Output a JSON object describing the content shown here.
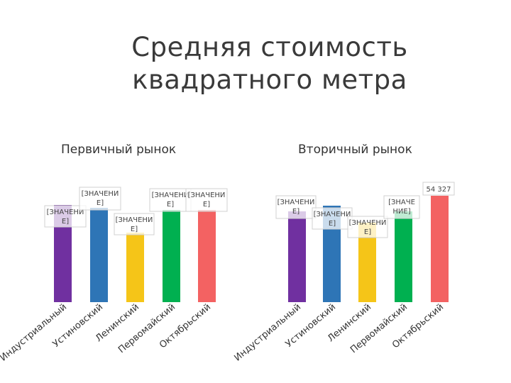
{
  "title_lines": [
    "Средняя стоимость",
    "квадратного метра"
  ],
  "charts": [
    {
      "subtitle": "Первичный рынок",
      "chart_data": {
        "type": "bar",
        "categories": [
          "Индустриальный",
          "Устиновский",
          "Ленинский",
          "Первомайский",
          "Октябрьский"
        ],
        "colors": [
          "#7030a0",
          "#2e75b6",
          "#f5c518",
          "#00b050",
          "#f36262"
        ],
        "values": [
          null,
          null,
          null,
          null,
          null
        ],
        "data_labels": [
          "[ЗНАЧЕНИ\nЕ]",
          "[ЗНАЧЕНИ\nЕ]",
          "[ЗНАЧЕНИ\nЕ]",
          "[ЗНАЧЕНИ\nЕ]",
          "[ЗНАЧЕНИ\nЕ]"
        ]
      }
    },
    {
      "subtitle": "Вторичный рынок",
      "chart_data": {
        "type": "bar",
        "categories": [
          "Индустриальный",
          "Устиновский",
          "Ленинский",
          "Первомайский",
          "Октябрьский"
        ],
        "colors": [
          "#7030a0",
          "#2e75b6",
          "#f5c518",
          "#00b050",
          "#f36262"
        ],
        "values": [
          null,
          null,
          null,
          null,
          54327
        ],
        "data_labels": [
          "[ЗНАЧЕНИ\nЕ]",
          "[ЗНАЧЕНИ\nЕ]",
          "[ЗНАЧЕНИ\nЕ]",
          "[ЗНАЧЕ\nНИЕ]",
          "54 327"
        ]
      }
    }
  ]
}
